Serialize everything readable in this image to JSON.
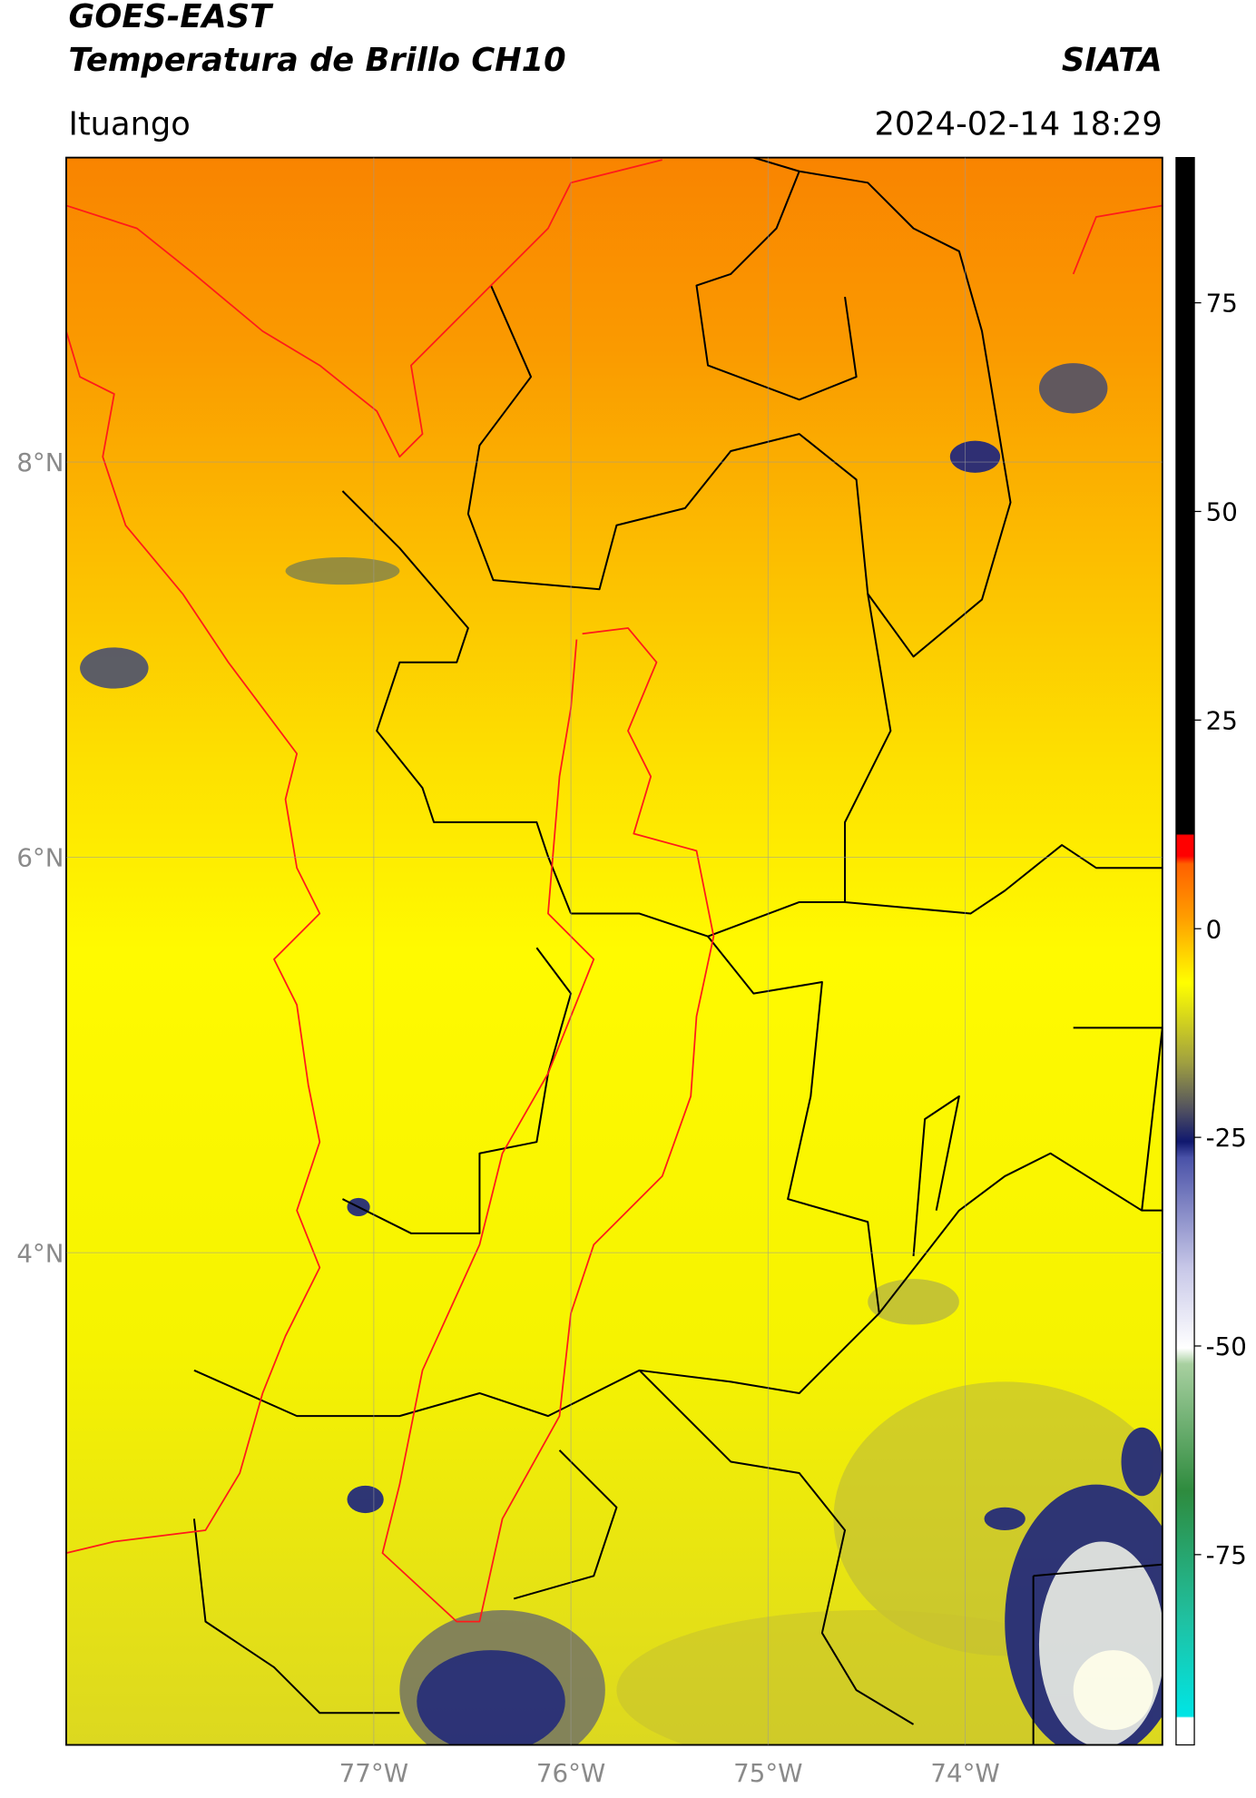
{
  "header": {
    "title": "GOES-EAST",
    "subtitle": "Temperatura de Brillo CH10",
    "source": "SIATA",
    "location": "Ituango",
    "datetime": "2024-02-14 18:29"
  },
  "map": {
    "lonlim": [
      -78.56,
      -73.0
    ],
    "latlim": [
      1.51,
      9.54
    ],
    "lonticks": [
      {
        "value": -77,
        "label": "77°W"
      },
      {
        "value": -76,
        "label": "76°W"
      },
      {
        "value": -75,
        "label": "75°W"
      },
      {
        "value": -74,
        "label": "74°W"
      }
    ],
    "latticks": [
      {
        "value": 4,
        "label": "4°N"
      },
      {
        "value": 6,
        "label": "6°N"
      },
      {
        "value": 8,
        "label": "8°N"
      }
    ],
    "grid": true
  },
  "colorbar": {
    "lim": [
      -97.8,
      92.4
    ],
    "ticks": [
      -75,
      -50,
      -25,
      0,
      25,
      50,
      75
    ]
  }
}
